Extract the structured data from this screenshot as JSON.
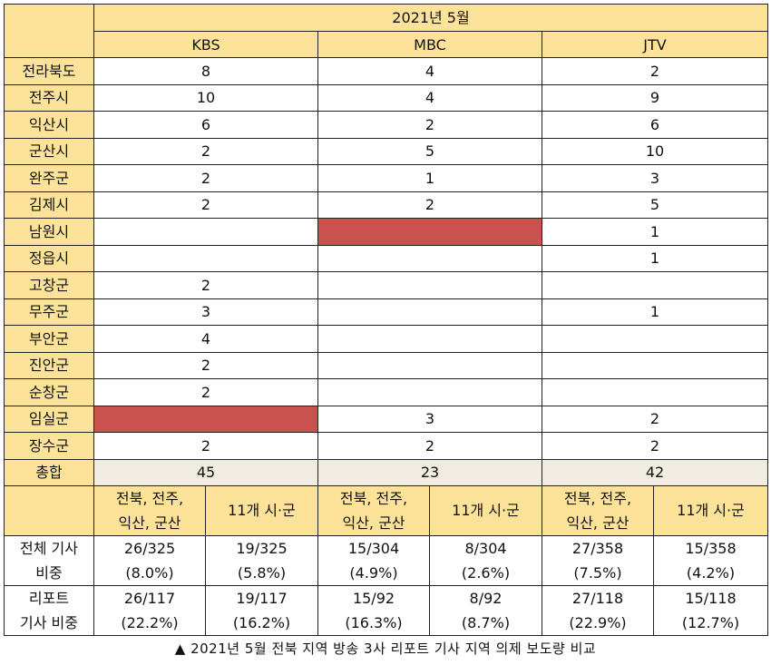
{
  "header": {
    "period": "2021년 5월",
    "stations": [
      "KBS",
      "MBC",
      "JTV"
    ]
  },
  "regions": [
    {
      "name": "전라북도",
      "KBS": "8",
      "MBC": "4",
      "JTV": "2"
    },
    {
      "name": "전주시",
      "KBS": "10",
      "MBC": "4",
      "JTV": "9"
    },
    {
      "name": "익산시",
      "KBS": "6",
      "MBC": "2",
      "JTV": "6"
    },
    {
      "name": "군산시",
      "KBS": "2",
      "MBC": "5",
      "JTV": "10"
    },
    {
      "name": "완주군",
      "KBS": "2",
      "MBC": "1",
      "JTV": "3"
    },
    {
      "name": "김제시",
      "KBS": "2",
      "MBC": "2",
      "JTV": "5"
    },
    {
      "name": "남원시",
      "KBS": "",
      "MBC": "",
      "JTV": "1"
    },
    {
      "name": "정읍시",
      "KBS": "",
      "MBC": "",
      "JTV": "1"
    },
    {
      "name": "고창군",
      "KBS": "2",
      "MBC": "",
      "JTV": ""
    },
    {
      "name": "무주군",
      "KBS": "3",
      "MBC": "",
      "JTV": "1"
    },
    {
      "name": "부안군",
      "KBS": "4",
      "MBC": "",
      "JTV": ""
    },
    {
      "name": "진안군",
      "KBS": "2",
      "MBC": "",
      "JTV": ""
    },
    {
      "name": "순창군",
      "KBS": "2",
      "MBC": "",
      "JTV": ""
    },
    {
      "name": "임실군",
      "KBS": "",
      "MBC": "3",
      "JTV": "2"
    },
    {
      "name": "장수군",
      "KBS": "2",
      "MBC": "2",
      "JTV": "2"
    }
  ],
  "highlights": {
    "colors": {
      "red": "#c9524e",
      "yellow": "#fde39a",
      "beige": "#f1ece2"
    }
  },
  "total": {
    "label": "총합",
    "KBS": "45",
    "MBC": "23",
    "JTV": "42"
  },
  "subheaders": {
    "line1": "전북, 전주,",
    "line2": "익산, 군산",
    "other": "11개 시·군"
  },
  "stats": {
    "all_label_1": "전체 기사",
    "all_label_2": "비중",
    "all": [
      {
        "count": "26/325",
        "pct": "(8.0%)"
      },
      {
        "count": "19/325",
        "pct": "(5.8%)"
      },
      {
        "count": "15/304",
        "pct": "(4.9%)"
      },
      {
        "count": "8/304",
        "pct": "(2.6%)"
      },
      {
        "count": "27/358",
        "pct": "(7.5%)"
      },
      {
        "count": "15/358",
        "pct": "(4.2%)"
      }
    ],
    "report_label_1": "리포트",
    "report_label_2": "기사 비중",
    "report": [
      {
        "count": "26/117",
        "pct": "(22.2%)"
      },
      {
        "count": "19/117",
        "pct": "(16.2%)"
      },
      {
        "count": "15/92",
        "pct": "(16.3%)"
      },
      {
        "count": "8/92",
        "pct": "(8.7%)"
      },
      {
        "count": "27/118",
        "pct": "(22.9%)"
      },
      {
        "count": "15/118",
        "pct": "(12.7%)"
      }
    ]
  },
  "caption": "▲ 2021년 5월 전북 지역 방송 3사 리포트 기사 지역 의제 보도량 비교"
}
